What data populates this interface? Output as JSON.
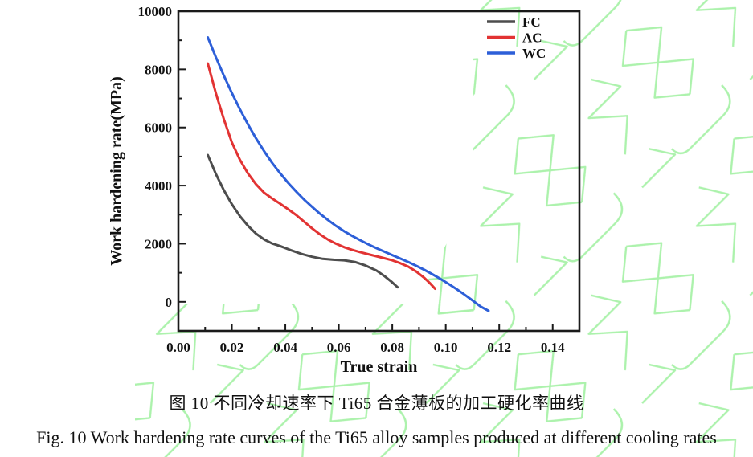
{
  "captions": {
    "zh": "图 10  不同冷却速率下 Ti65 合金薄板的加工硬化率曲线",
    "en": "Fig. 10 Work hardening rate curves of the Ti65 alloy samples produced at different cooling rates"
  },
  "watermark": {
    "color": "#90ee90"
  },
  "frame_color": "#1a1a1a",
  "chart_data": {
    "type": "line",
    "title": "",
    "xlabel": "True strain",
    "ylabel": "Work hardening rate(MPa)",
    "xlim": [
      0,
      0.15
    ],
    "ylim": [
      -1000,
      10000
    ],
    "grid": false,
    "legend_position": "top-right",
    "x_ticks": [
      {
        "v": 0.0,
        "label": "0.00"
      },
      {
        "v": 0.02,
        "label": "0.02"
      },
      {
        "v": 0.04,
        "label": "0.04"
      },
      {
        "v": 0.06,
        "label": "0.06"
      },
      {
        "v": 0.08,
        "label": "0.08"
      },
      {
        "v": 0.1,
        "label": "0.10"
      },
      {
        "v": 0.12,
        "label": "0.12"
      },
      {
        "v": 0.14,
        "label": "0.14"
      }
    ],
    "x_minor_ticks": [
      0.01,
      0.03,
      0.05,
      0.07,
      0.09,
      0.11,
      0.13,
      0.15
    ],
    "y_ticks": [
      {
        "v": 0,
        "label": "0"
      },
      {
        "v": 2000,
        "label": "2000"
      },
      {
        "v": 4000,
        "label": "4000"
      },
      {
        "v": 6000,
        "label": "6000"
      },
      {
        "v": 8000,
        "label": "8000"
      },
      {
        "v": 10000,
        "label": "10000"
      }
    ],
    "y_minor_ticks": [
      1000,
      3000,
      5000,
      7000,
      9000
    ],
    "series": [
      {
        "name": "FC",
        "color": "#4d4d4d",
        "points": [
          [
            0.011,
            5050
          ],
          [
            0.014,
            4400
          ],
          [
            0.017,
            3840
          ],
          [
            0.02,
            3360
          ],
          [
            0.023,
            2950
          ],
          [
            0.026,
            2620
          ],
          [
            0.029,
            2350
          ],
          [
            0.032,
            2150
          ],
          [
            0.035,
            2010
          ],
          [
            0.038,
            1920
          ],
          [
            0.042,
            1780
          ],
          [
            0.046,
            1650
          ],
          [
            0.05,
            1550
          ],
          [
            0.054,
            1480
          ],
          [
            0.058,
            1450
          ],
          [
            0.062,
            1430
          ],
          [
            0.066,
            1370
          ],
          [
            0.07,
            1250
          ],
          [
            0.074,
            1080
          ],
          [
            0.077,
            890
          ],
          [
            0.08,
            670
          ],
          [
            0.082,
            500
          ]
        ]
      },
      {
        "name": "AC",
        "color": "#e23333",
        "points": [
          [
            0.011,
            8200
          ],
          [
            0.014,
            7180
          ],
          [
            0.017,
            6280
          ],
          [
            0.02,
            5490
          ],
          [
            0.023,
            4890
          ],
          [
            0.026,
            4420
          ],
          [
            0.029,
            4050
          ],
          [
            0.032,
            3760
          ],
          [
            0.035,
            3560
          ],
          [
            0.038,
            3380
          ],
          [
            0.041,
            3190
          ],
          [
            0.044,
            2990
          ],
          [
            0.047,
            2760
          ],
          [
            0.05,
            2530
          ],
          [
            0.053,
            2320
          ],
          [
            0.056,
            2140
          ],
          [
            0.059,
            2000
          ],
          [
            0.062,
            1880
          ],
          [
            0.065,
            1790
          ],
          [
            0.068,
            1710
          ],
          [
            0.071,
            1640
          ],
          [
            0.074,
            1570
          ],
          [
            0.077,
            1500
          ],
          [
            0.08,
            1430
          ],
          [
            0.083,
            1330
          ],
          [
            0.086,
            1210
          ],
          [
            0.089,
            1040
          ],
          [
            0.092,
            820
          ],
          [
            0.094,
            650
          ],
          [
            0.096,
            450
          ]
        ]
      },
      {
        "name": "WC",
        "color": "#2d5fd8",
        "points": [
          [
            0.011,
            9100
          ],
          [
            0.014,
            8420
          ],
          [
            0.017,
            7780
          ],
          [
            0.02,
            7190
          ],
          [
            0.023,
            6630
          ],
          [
            0.026,
            6110
          ],
          [
            0.029,
            5630
          ],
          [
            0.032,
            5190
          ],
          [
            0.035,
            4790
          ],
          [
            0.038,
            4430
          ],
          [
            0.041,
            4100
          ],
          [
            0.044,
            3800
          ],
          [
            0.047,
            3520
          ],
          [
            0.05,
            3270
          ],
          [
            0.053,
            3030
          ],
          [
            0.056,
            2810
          ],
          [
            0.059,
            2610
          ],
          [
            0.062,
            2430
          ],
          [
            0.065,
            2270
          ],
          [
            0.068,
            2120
          ],
          [
            0.071,
            1980
          ],
          [
            0.074,
            1850
          ],
          [
            0.077,
            1730
          ],
          [
            0.08,
            1610
          ],
          [
            0.083,
            1490
          ],
          [
            0.086,
            1370
          ],
          [
            0.089,
            1240
          ],
          [
            0.092,
            1100
          ],
          [
            0.095,
            950
          ],
          [
            0.098,
            790
          ],
          [
            0.101,
            620
          ],
          [
            0.104,
            440
          ],
          [
            0.107,
            250
          ],
          [
            0.11,
            50
          ],
          [
            0.113,
            -160
          ],
          [
            0.116,
            -310
          ]
        ]
      }
    ]
  }
}
